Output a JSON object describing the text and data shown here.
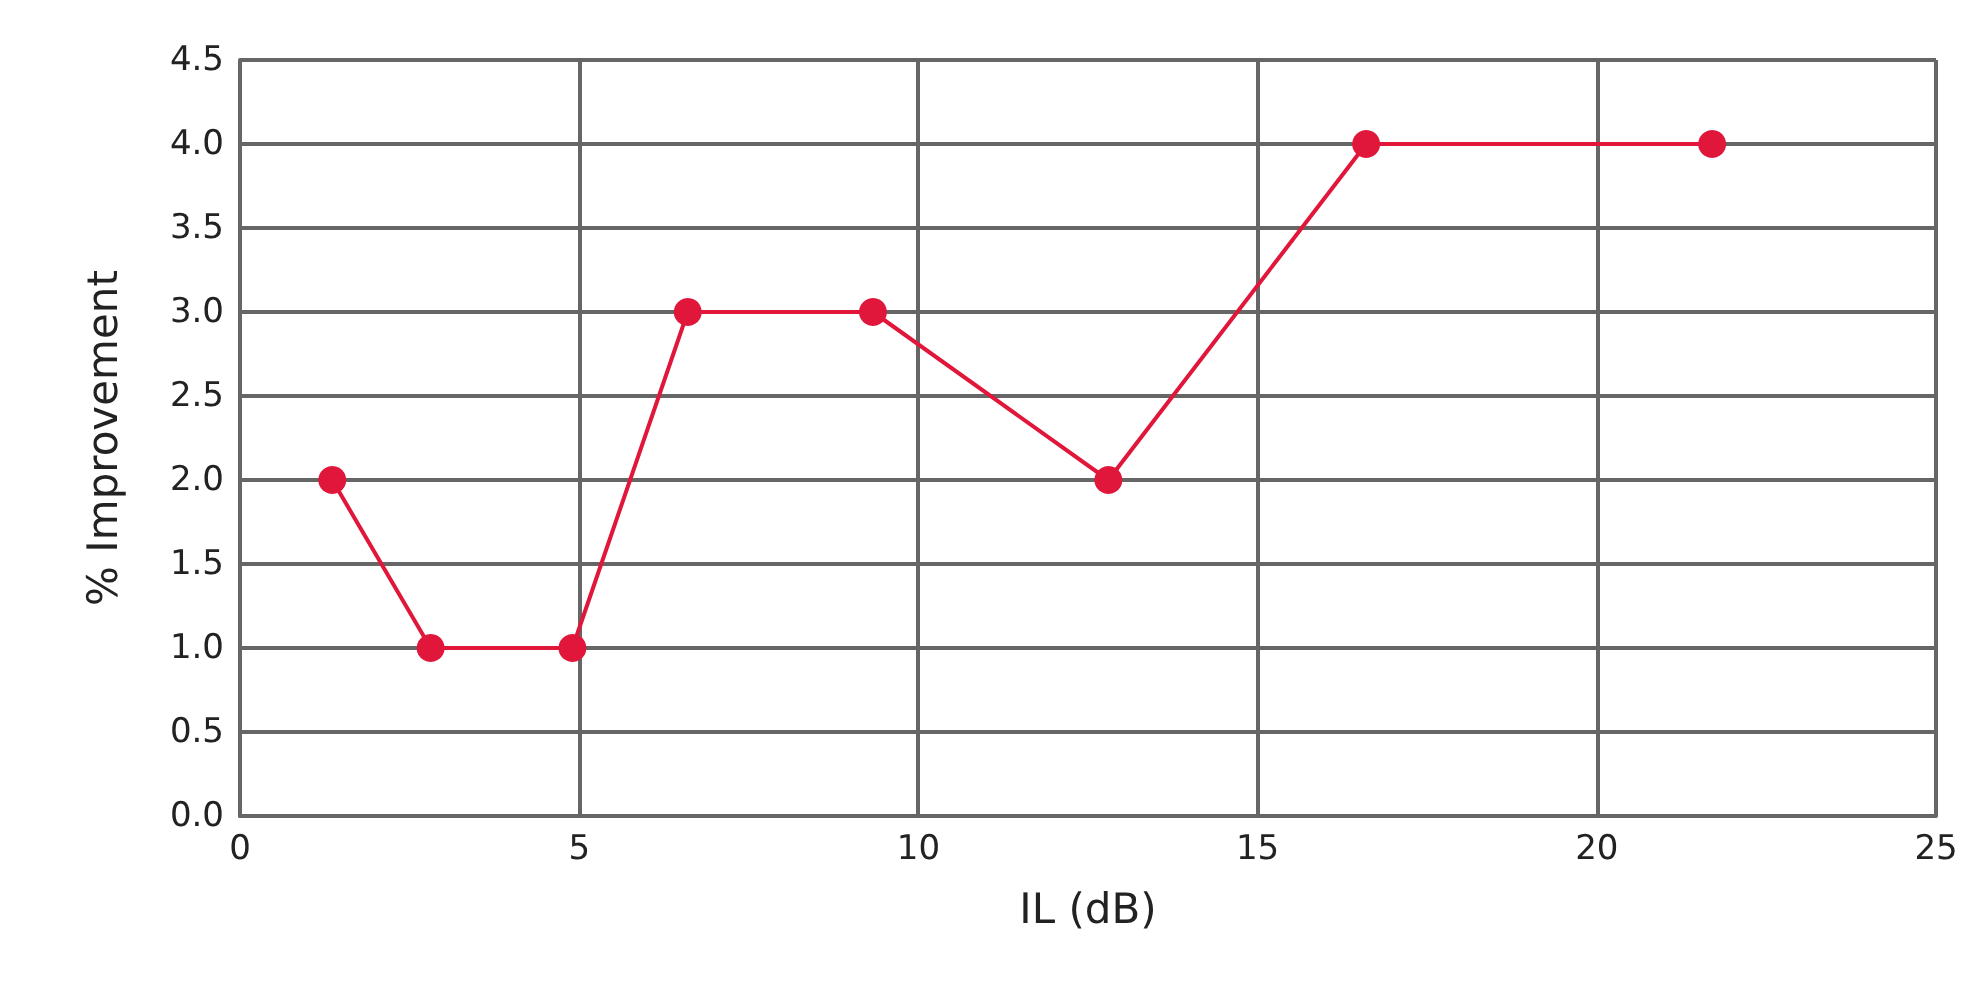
{
  "chart_data": {
    "type": "line",
    "xlabel": "IL (dB)",
    "ylabel": "% Improvement",
    "x": [
      1.36,
      2.81,
      4.9,
      6.6,
      9.33,
      12.8,
      16.6,
      21.7
    ],
    "series": [
      {
        "color": "#e0173a",
        "values": [
          2.0,
          1.0,
          1.0,
          3.0,
          3.0,
          2.0,
          4.0,
          4.0
        ]
      }
    ],
    "xlim": [
      0,
      25
    ],
    "xticks": [
      0,
      5,
      10,
      15,
      20,
      25
    ],
    "ylim": [
      0,
      4.5
    ],
    "yticks": [
      {
        "value": 0,
        "label": "0.0"
      },
      {
        "value": 0.5,
        "label": "0.5"
      },
      {
        "value": 1,
        "label": "1.0"
      },
      {
        "value": 1.5,
        "label": "1.5"
      },
      {
        "value": 2,
        "label": "2.0"
      },
      {
        "value": 2.5,
        "label": "2.5"
      },
      {
        "value": 3,
        "label": "3.0"
      },
      {
        "value": 3.5,
        "label": "3.5"
      },
      {
        "value": 4,
        "label": "4.0"
      },
      {
        "value": 4.5,
        "label": "4.5"
      }
    ],
    "grid": true,
    "marker": "circle",
    "line_style": "solid"
  }
}
